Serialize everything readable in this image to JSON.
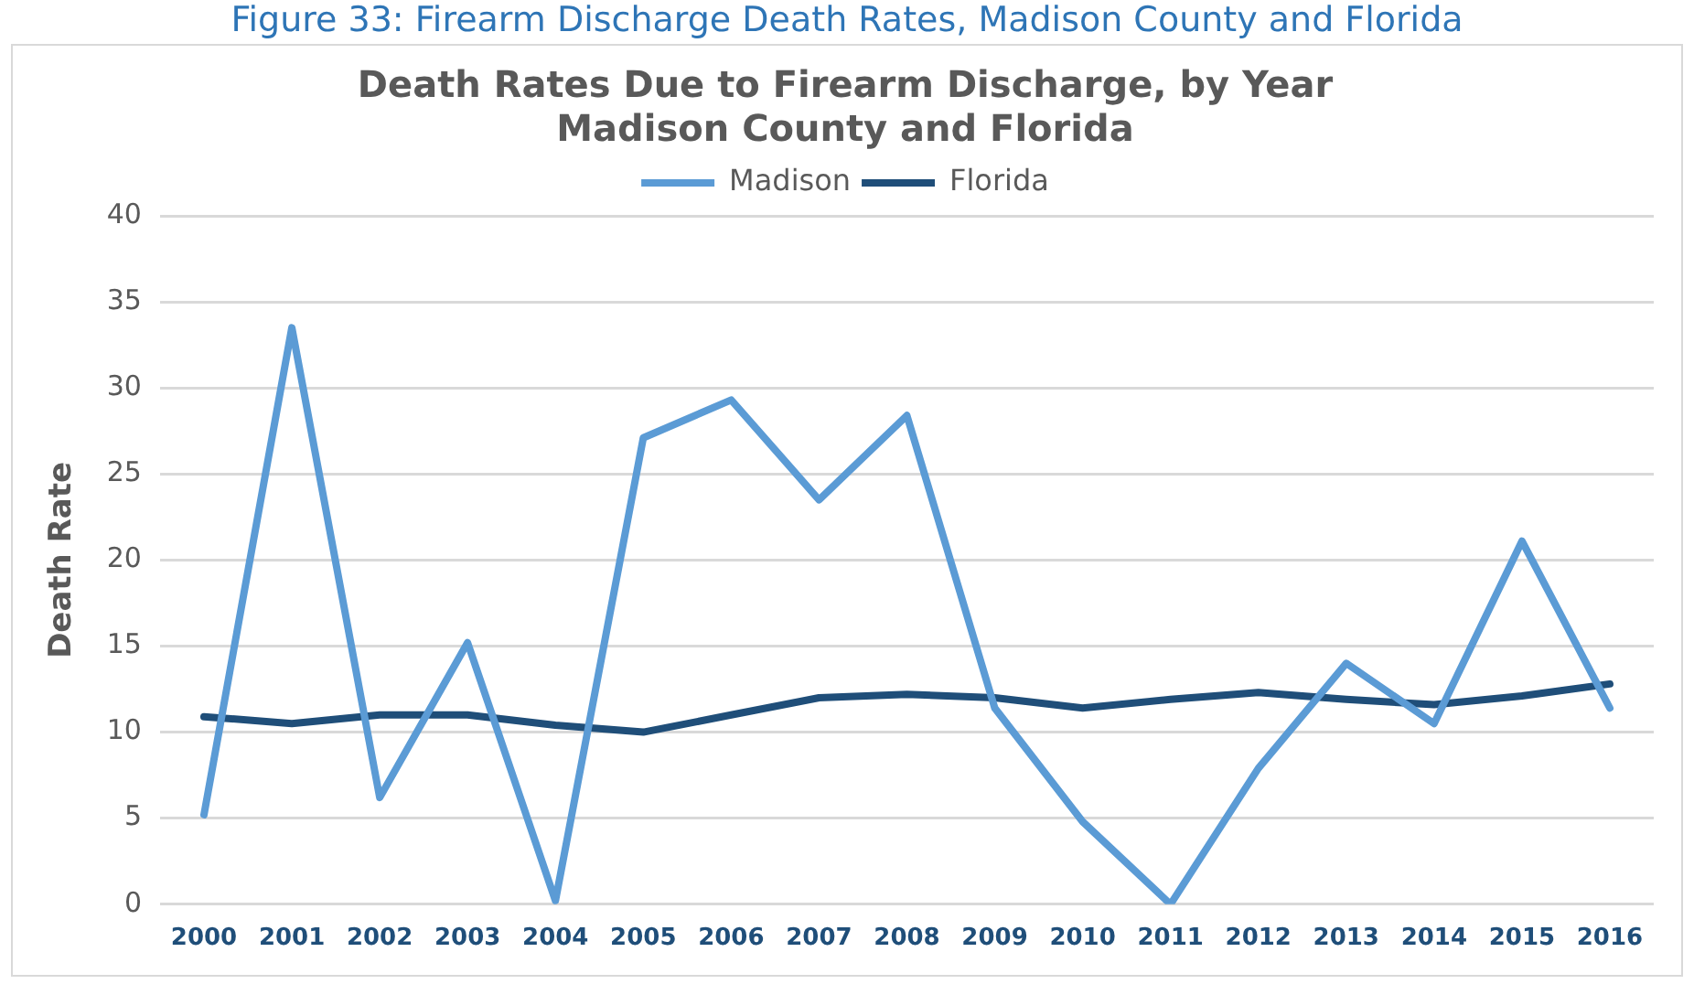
{
  "chart_data": {
    "type": "line",
    "title": [
      "Death Rates Due to Firearm Discharge, by Year",
      "Madison County and Florida"
    ],
    "annotations": [
      "Figure 33: Firearm Discharge Death Rates, Madison County and Florida"
    ],
    "ylabel": "Death Rate",
    "categories": [
      "2000",
      "2001",
      "2002",
      "2003",
      "2004",
      "2005",
      "2006",
      "2007",
      "2008",
      "2009",
      "2010",
      "2011",
      "2012",
      "2013",
      "2014",
      "2015",
      "2016"
    ],
    "series": [
      {
        "name": "Madison",
        "color": "#5b9bd5",
        "values": [
          5.2,
          33.5,
          6.2,
          15.2,
          0.2,
          27.1,
          29.3,
          23.5,
          28.4,
          11.4,
          4.8,
          0,
          7.9,
          14,
          10.5,
          21.1,
          11.4
        ]
      },
      {
        "name": "Florida",
        "color": "#1f4e79",
        "values": [
          10.9,
          10.5,
          11,
          11,
          10.4,
          10,
          11,
          12,
          12.2,
          12,
          11.4,
          11.9,
          12.3,
          11.9,
          11.6,
          12.1,
          12.8
        ]
      }
    ],
    "ylim": [
      0,
      40
    ],
    "yticks": [
      0,
      5,
      10,
      15,
      20,
      25,
      30,
      35,
      40
    ],
    "grid": "y",
    "legend": "top",
    "marker": "none",
    "line_style": "solid"
  }
}
